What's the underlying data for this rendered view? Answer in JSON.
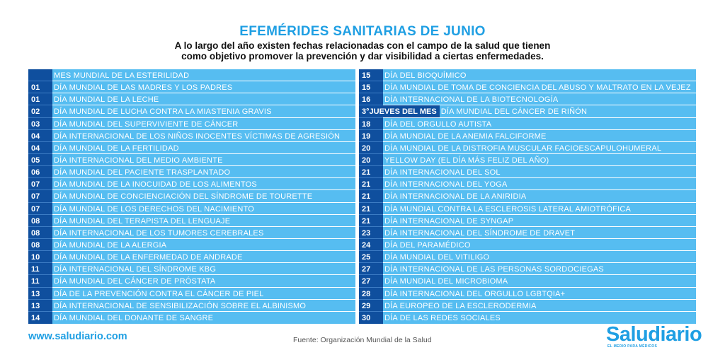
{
  "header": {
    "title": "EFEMÉRIDES SANITARIAS DE JUNIO",
    "subtitle_line1": "A lo largo del año existen fechas relacionadas con el campo de la salud que tienen",
    "subtitle_line2": "como objetivo promover la prevención y dar visibilidad a ciertas enfermedades."
  },
  "left_column": [
    {
      "day": "",
      "label": "MES MUNDIAL DE LA ESTERILIDAD"
    },
    {
      "day": "01",
      "label": "DÍA MUNDIAL DE LAS MADRES Y LOS PADRES"
    },
    {
      "day": "01",
      "label": "DÍA MUNDIAL DE LA LECHE"
    },
    {
      "day": "02",
      "label": "DÍA MUNDIAL DE LUCHA CONTRA LA MIASTENIA GRAVIS"
    },
    {
      "day": "03",
      "label": "DÍA MUNDIAL DEL SUPERVIVIENTE DE CÁNCER"
    },
    {
      "day": "04",
      "label": "DÍA INTERNACIONAL DE LOS NIÑOS INOCENTES VÍCTIMAS DE AGRESIÓN"
    },
    {
      "day": "04",
      "label": "DÍA MUNDIAL DE LA FERTILIDAD"
    },
    {
      "day": "05",
      "label": "DÍA INTERNACIONAL DEL MEDIO AMBIENTE"
    },
    {
      "day": "06",
      "label": "DÍA MUNDIAL DEL PACIENTE TRASPLANTADO"
    },
    {
      "day": "07",
      "label": "DÍA MUNDIAL DE LA INOCUIDAD DE LOS ALIMENTOS"
    },
    {
      "day": "07",
      "label": "DÍA MUNDIAL DE CONCIENCIACIÓN DEL SÍNDROME DE TOURETTE"
    },
    {
      "day": "07",
      "label": "DÍA MUNDIAL DE LOS DERECHOS DEL NACIMIENTO"
    },
    {
      "day": "08",
      "label": "DÍA MUNDIAL DEL TERAPISTA DEL LENGUAJE"
    },
    {
      "day": "08",
      "label": "DÍA INTERNACIONAL DE LOS TUMORES CEREBRALES"
    },
    {
      "day": "08",
      "label": "DÍA MUNDIAL DE LA ALERGIA"
    },
    {
      "day": "10",
      "label": "DÍA MUNDIAL DE LA ENFERMEDAD DE ANDRADE"
    },
    {
      "day": "11",
      "label": "DÍA INTERNACIONAL DEL SÍNDROME KBG"
    },
    {
      "day": "11",
      "label": "DÍA MUNDIAL DEL CÁNCER DE PRÓSTATA"
    },
    {
      "day": "13",
      "label": "DÍA DE LA PREVENCIÓN CONTRA EL CÁNCER DE PIEL"
    },
    {
      "day": "13",
      "label": "DÍA INTERNACIONAL DE SENSIBILIZACIÓN SOBRE EL ALBINISMO"
    },
    {
      "day": "14",
      "label": "DÍA MUNDIAL DEL DONANTE DE SANGRE"
    }
  ],
  "right_column": [
    {
      "day": "15",
      "label": "DÍA DEL BIOQUÍMICO"
    },
    {
      "day": "15",
      "label": "DÍA MUNDIAL DE TOMA DE CONCIENCIA DEL ABUSO Y MALTRATO EN LA VEJEZ"
    },
    {
      "day": "16",
      "label": "DÍA INTERNACIONAL DE LA BIOTECNOLOGÍA"
    },
    {
      "day": "3°JUEVES DEL MES",
      "label": "DÍA MUNDIAL DEL CÁNCER DE RIÑÓN"
    },
    {
      "day": "18",
      "label": "DÍA DEL ORGULLO AUTISTA"
    },
    {
      "day": "19",
      "label": "DÍA MUNDIAL DE LA ANEMIA FALCIFORME"
    },
    {
      "day": "20",
      "label": "DÍA MUNDIAL DE LA DISTROFIA MUSCULAR FACIOESCAPULOHUMERAL"
    },
    {
      "day": "20",
      "label": "YELLOW DAY (EL DÍA MÁS FELIZ DEL AÑO)"
    },
    {
      "day": "21",
      "label": "DÍA INTERNACIONAL DEL SOL"
    },
    {
      "day": "21",
      "label": "DÍA INTERNACIONAL DEL YOGA"
    },
    {
      "day": "21",
      "label": "DÍA INTERNACIONAL DE LA ANIRIDIA"
    },
    {
      "day": "21",
      "label": "DÍA MUNDIAL CONTRA LA ESCLEROSIS LATERAL AMIOTRÓFICA"
    },
    {
      "day": "21",
      "label": "DÍA INTERNACIONAL DE SYNGAP"
    },
    {
      "day": "23",
      "label": "DÍA INTERNACIONAL DEL SÍNDROME DE DRAVET"
    },
    {
      "day": "24",
      "label": "DÍA DEL PARAMÉDICO"
    },
    {
      "day": "25",
      "label": "DÍA MUNDIAL DEL VITILIGO"
    },
    {
      "day": "27",
      "label": "DÍA INTERNACIONAL DE LAS PERSONAS SORDOCIEGAS"
    },
    {
      "day": "27",
      "label": "DÍA MUNDIAL DEL MICROBIOMA"
    },
    {
      "day": "28",
      "label": "DÍA INTERNACIONAL DEL ORGULLO LGBTQIA+"
    },
    {
      "day": "29",
      "label": "DÍA EUROPEO DE LA ESCLERODERMIA"
    },
    {
      "day": "30",
      "label": "DÍA DE LAS REDES SOCIALES"
    }
  ],
  "footer": {
    "website": "www.saludiario.com",
    "source": "Fuente: Organización Mundial de la Salud",
    "brand": "Saludiario",
    "tagline": "EL MEDIO PARA MÉDICOS"
  },
  "colors": {
    "accent": "#1f9fe3",
    "row_bg": "#56bdf1",
    "num_bg": "#0f4f9e"
  }
}
